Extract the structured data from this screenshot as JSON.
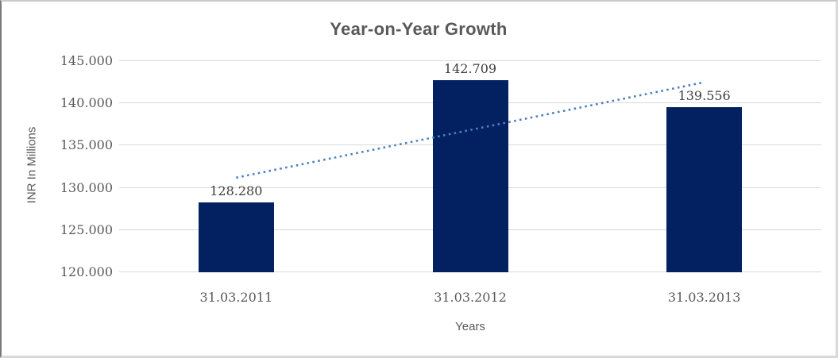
{
  "chart_data": {
    "type": "bar",
    "title": "Year-on-Year Growth",
    "categories": [
      "31.03.2011",
      "31.03.2012",
      "31.03.2013"
    ],
    "values": [
      128.28,
      142.709,
      139.556
    ],
    "data_labels": [
      "128.280",
      "142.709",
      "139.556"
    ],
    "xlabel": "Years",
    "ylabel": "INR In Millions",
    "ylim": [
      120,
      145
    ],
    "ytick_labels": [
      "120.000",
      "125.000",
      "130.000",
      "135.000",
      "140.000",
      "145.000"
    ],
    "ytick_values": [
      120,
      125,
      130,
      135,
      140,
      145
    ],
    "grid": true,
    "legend_position": "none",
    "bar_color": "#032060",
    "gridline_color": "#d9d9d9",
    "title_color": "#595959",
    "tick_color": "#595959",
    "data_label_color": "#404040",
    "trendline": {
      "style": "dotted",
      "color": "#4e81bd",
      "start_value": 131.2,
      "end_value": 142.5
    }
  }
}
